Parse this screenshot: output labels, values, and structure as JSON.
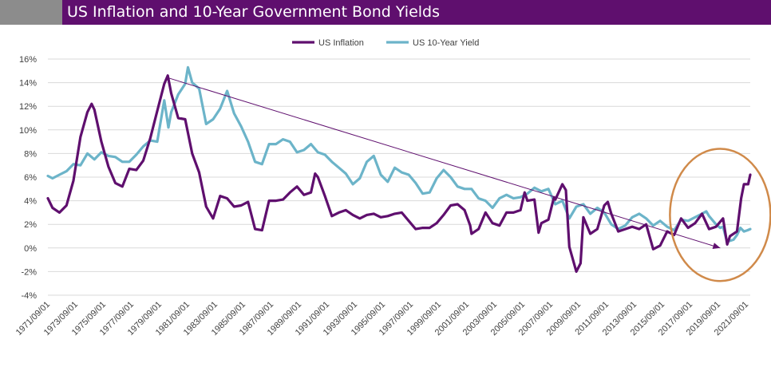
{
  "chart_data": {
    "type": "line",
    "title": "US Inflation and 10-Year Government Bond Yields",
    "ylim": [
      -4,
      16
    ],
    "yticks": [
      -4,
      -2,
      0,
      2,
      4,
      6,
      8,
      10,
      12,
      14,
      16
    ],
    "ytick_labels": [
      "-4%",
      "-2%",
      "0%",
      "2%",
      "4%",
      "6%",
      "8%",
      "10%",
      "12%",
      "14%",
      "16%"
    ],
    "xlim": [
      1971.67,
      2021.95
    ],
    "xtick_labels": [
      "1971/09/01",
      "1973/09/01",
      "1975/09/01",
      "1977/09/01",
      "1979/09/01",
      "1981/09/01",
      "1983/09/01",
      "1985/09/01",
      "1987/09/01",
      "1989/09/01",
      "1991/09/01",
      "1993/09/01",
      "1995/09/01",
      "1997/09/01",
      "1999/09/01",
      "2001/09/01",
      "2003/09/01",
      "2005/09/01",
      "2007/09/01",
      "2009/09/01",
      "2011/09/01",
      "2013/09/01",
      "2015/09/01",
      "2017/09/01",
      "2019/09/01",
      "2021/09/01"
    ],
    "legend_position": "top-center",
    "grid": true,
    "series": [
      {
        "name": "US Inflation",
        "color": "#5f0f6e",
        "points": [
          [
            1971.67,
            4.2
          ],
          [
            1972.0,
            3.4
          ],
          [
            1972.5,
            3.0
          ],
          [
            1973.0,
            3.6
          ],
          [
            1973.5,
            5.7
          ],
          [
            1974.0,
            9.4
          ],
          [
            1974.5,
            11.5
          ],
          [
            1974.8,
            12.2
          ],
          [
            1975.0,
            11.7
          ],
          [
            1975.5,
            9.0
          ],
          [
            1976.0,
            6.9
          ],
          [
            1976.5,
            5.5
          ],
          [
            1977.0,
            5.2
          ],
          [
            1977.5,
            6.7
          ],
          [
            1978.0,
            6.6
          ],
          [
            1978.5,
            7.4
          ],
          [
            1979.0,
            9.3
          ],
          [
            1979.5,
            11.6
          ],
          [
            1980.0,
            13.9
          ],
          [
            1980.25,
            14.6
          ],
          [
            1980.5,
            13.1
          ],
          [
            1981.0,
            11.0
          ],
          [
            1981.5,
            10.9
          ],
          [
            1982.0,
            8.0
          ],
          [
            1982.5,
            6.4
          ],
          [
            1983.0,
            3.5
          ],
          [
            1983.5,
            2.5
          ],
          [
            1984.0,
            4.4
          ],
          [
            1984.5,
            4.2
          ],
          [
            1985.0,
            3.5
          ],
          [
            1985.5,
            3.6
          ],
          [
            1986.0,
            3.9
          ],
          [
            1986.5,
            1.6
          ],
          [
            1987.0,
            1.5
          ],
          [
            1987.5,
            4.0
          ],
          [
            1988.0,
            4.0
          ],
          [
            1988.5,
            4.1
          ],
          [
            1989.0,
            4.7
          ],
          [
            1989.5,
            5.2
          ],
          [
            1990.0,
            4.5
          ],
          [
            1990.5,
            4.7
          ],
          [
            1990.8,
            6.3
          ],
          [
            1991.0,
            6.0
          ],
          [
            1991.5,
            4.4
          ],
          [
            1992.0,
            2.7
          ],
          [
            1992.5,
            3.0
          ],
          [
            1993.0,
            3.2
          ],
          [
            1993.5,
            2.8
          ],
          [
            1994.0,
            2.5
          ],
          [
            1994.5,
            2.8
          ],
          [
            1995.0,
            2.9
          ],
          [
            1995.5,
            2.6
          ],
          [
            1996.0,
            2.7
          ],
          [
            1996.5,
            2.9
          ],
          [
            1997.0,
            3.0
          ],
          [
            1997.5,
            2.3
          ],
          [
            1998.0,
            1.6
          ],
          [
            1998.5,
            1.7
          ],
          [
            1999.0,
            1.7
          ],
          [
            1999.5,
            2.1
          ],
          [
            2000.0,
            2.8
          ],
          [
            2000.5,
            3.6
          ],
          [
            2001.0,
            3.7
          ],
          [
            2001.5,
            3.2
          ],
          [
            2001.9,
            1.9
          ],
          [
            2002.0,
            1.2
          ],
          [
            2002.5,
            1.6
          ],
          [
            2003.0,
            3.0
          ],
          [
            2003.5,
            2.1
          ],
          [
            2004.0,
            1.9
          ],
          [
            2004.5,
            3.0
          ],
          [
            2005.0,
            3.0
          ],
          [
            2005.5,
            3.2
          ],
          [
            2005.8,
            4.7
          ],
          [
            2006.0,
            4.0
          ],
          [
            2006.5,
            4.1
          ],
          [
            2006.8,
            1.3
          ],
          [
            2007.0,
            2.1
          ],
          [
            2007.5,
            2.4
          ],
          [
            2007.9,
            4.3
          ],
          [
            2008.0,
            4.1
          ],
          [
            2008.5,
            5.4
          ],
          [
            2008.75,
            4.9
          ],
          [
            2009.0,
            0.1
          ],
          [
            2009.5,
            -2.0
          ],
          [
            2009.8,
            -1.3
          ],
          [
            2010.0,
            2.6
          ],
          [
            2010.5,
            1.2
          ],
          [
            2011.0,
            1.6
          ],
          [
            2011.5,
            3.6
          ],
          [
            2011.75,
            3.9
          ],
          [
            2012.0,
            2.9
          ],
          [
            2012.5,
            1.4
          ],
          [
            2013.0,
            1.6
          ],
          [
            2013.5,
            1.8
          ],
          [
            2014.0,
            1.6
          ],
          [
            2014.5,
            2.0
          ],
          [
            2015.0,
            -0.1
          ],
          [
            2015.5,
            0.2
          ],
          [
            2016.0,
            1.4
          ],
          [
            2016.5,
            1.1
          ],
          [
            2017.0,
            2.5
          ],
          [
            2017.5,
            1.7
          ],
          [
            2018.0,
            2.1
          ],
          [
            2018.5,
            2.9
          ],
          [
            2019.0,
            1.6
          ],
          [
            2019.5,
            1.8
          ],
          [
            2020.0,
            2.5
          ],
          [
            2020.3,
            0.3
          ],
          [
            2020.5,
            1.0
          ],
          [
            2021.0,
            1.4
          ],
          [
            2021.3,
            4.2
          ],
          [
            2021.5,
            5.4
          ],
          [
            2021.8,
            5.4
          ],
          [
            2021.95,
            6.2
          ]
        ]
      },
      {
        "name": "US 10-Year Yield",
        "color": "#6cb4c9",
        "points": [
          [
            1971.67,
            6.1
          ],
          [
            1972.0,
            5.9
          ],
          [
            1972.5,
            6.2
          ],
          [
            1973.0,
            6.5
          ],
          [
            1973.5,
            7.1
          ],
          [
            1974.0,
            7.0
          ],
          [
            1974.5,
            8.0
          ],
          [
            1975.0,
            7.5
          ],
          [
            1975.5,
            8.1
          ],
          [
            1976.0,
            7.8
          ],
          [
            1976.5,
            7.7
          ],
          [
            1977.0,
            7.3
          ],
          [
            1977.5,
            7.3
          ],
          [
            1978.0,
            7.9
          ],
          [
            1978.5,
            8.6
          ],
          [
            1979.0,
            9.1
          ],
          [
            1979.5,
            9.0
          ],
          [
            1980.0,
            12.5
          ],
          [
            1980.3,
            10.2
          ],
          [
            1980.5,
            11.5
          ],
          [
            1981.0,
            13.0
          ],
          [
            1981.5,
            13.9
          ],
          [
            1981.7,
            15.3
          ],
          [
            1982.0,
            14.0
          ],
          [
            1982.5,
            13.5
          ],
          [
            1983.0,
            10.5
          ],
          [
            1983.5,
            10.9
          ],
          [
            1984.0,
            11.8
          ],
          [
            1984.5,
            13.3
          ],
          [
            1985.0,
            11.4
          ],
          [
            1985.5,
            10.3
          ],
          [
            1986.0,
            9.0
          ],
          [
            1986.5,
            7.3
          ],
          [
            1987.0,
            7.1
          ],
          [
            1987.5,
            8.8
          ],
          [
            1988.0,
            8.8
          ],
          [
            1988.5,
            9.2
          ],
          [
            1989.0,
            9.0
          ],
          [
            1989.5,
            8.1
          ],
          [
            1990.0,
            8.3
          ],
          [
            1990.5,
            8.8
          ],
          [
            1991.0,
            8.1
          ],
          [
            1991.5,
            7.9
          ],
          [
            1992.0,
            7.3
          ],
          [
            1992.5,
            6.8
          ],
          [
            1993.0,
            6.3
          ],
          [
            1993.5,
            5.4
          ],
          [
            1994.0,
            5.9
          ],
          [
            1994.5,
            7.3
          ],
          [
            1995.0,
            7.8
          ],
          [
            1995.5,
            6.2
          ],
          [
            1996.0,
            5.6
          ],
          [
            1996.5,
            6.8
          ],
          [
            1997.0,
            6.4
          ],
          [
            1997.5,
            6.2
          ],
          [
            1998.0,
            5.5
          ],
          [
            1998.5,
            4.6
          ],
          [
            1999.0,
            4.7
          ],
          [
            1999.5,
            5.9
          ],
          [
            2000.0,
            6.6
          ],
          [
            2000.5,
            6.0
          ],
          [
            2001.0,
            5.2
          ],
          [
            2001.5,
            5.0
          ],
          [
            2002.0,
            5.0
          ],
          [
            2002.5,
            4.2
          ],
          [
            2003.0,
            4.0
          ],
          [
            2003.5,
            3.4
          ],
          [
            2004.0,
            4.2
          ],
          [
            2004.5,
            4.5
          ],
          [
            2005.0,
            4.2
          ],
          [
            2005.5,
            4.3
          ],
          [
            2006.0,
            4.6
          ],
          [
            2006.5,
            5.1
          ],
          [
            2007.0,
            4.8
          ],
          [
            2007.5,
            5.0
          ],
          [
            2008.0,
            3.7
          ],
          [
            2008.5,
            4.0
          ],
          [
            2009.0,
            2.5
          ],
          [
            2009.5,
            3.5
          ],
          [
            2010.0,
            3.7
          ],
          [
            2010.5,
            2.9
          ],
          [
            2011.0,
            3.4
          ],
          [
            2011.5,
            3.0
          ],
          [
            2012.0,
            2.0
          ],
          [
            2012.5,
            1.6
          ],
          [
            2013.0,
            1.9
          ],
          [
            2013.5,
            2.6
          ],
          [
            2014.0,
            2.9
          ],
          [
            2014.5,
            2.5
          ],
          [
            2015.0,
            1.9
          ],
          [
            2015.5,
            2.3
          ],
          [
            2016.0,
            1.8
          ],
          [
            2016.5,
            1.5
          ],
          [
            2017.0,
            2.4
          ],
          [
            2017.5,
            2.3
          ],
          [
            2018.0,
            2.6
          ],
          [
            2018.5,
            2.9
          ],
          [
            2018.8,
            3.1
          ],
          [
            2019.0,
            2.7
          ],
          [
            2019.5,
            2.0
          ],
          [
            2019.8,
            1.7
          ],
          [
            2020.0,
            1.8
          ],
          [
            2020.25,
            0.7
          ],
          [
            2020.5,
            0.6
          ],
          [
            2020.75,
            0.7
          ],
          [
            2021.0,
            1.1
          ],
          [
            2021.25,
            1.7
          ],
          [
            2021.5,
            1.4
          ],
          [
            2021.75,
            1.5
          ],
          [
            2021.95,
            1.6
          ]
        ]
      }
    ],
    "annotations": {
      "trend_arrow": {
        "from": [
          1980.3,
          14.4
        ],
        "to": [
          2019.8,
          0.0
        ],
        "color": "#5f0f6e"
      },
      "ellipse": {
        "center": [
          2019.8,
          2.8
        ],
        "rx_years": 3.6,
        "ry_pct": 5.6,
        "color": "#d08a4a"
      }
    }
  }
}
